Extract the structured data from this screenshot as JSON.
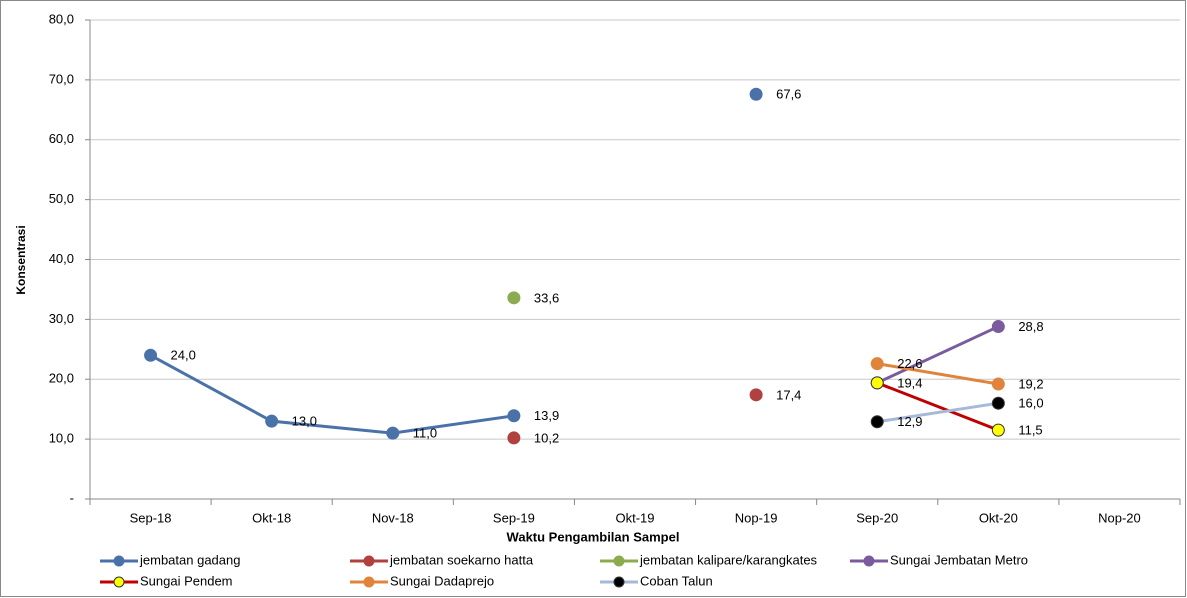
{
  "chart_data": {
    "type": "line",
    "y_label": "Konsentrasi",
    "x_label": "Waktu Pengambilan Sampel",
    "categories": [
      "Sep-18",
      "Okt-18",
      "Nov-18",
      "Sep-19",
      "Okt-19",
      "Nop-19",
      "Sep-20",
      "Okt-20",
      "Nop-20"
    ],
    "ylim": [
      0,
      80
    ],
    "yticks": [
      {
        "value": 0,
        "label": "-"
      },
      {
        "value": 10,
        "label": "10,0"
      },
      {
        "value": 20,
        "label": "20,0"
      },
      {
        "value": 30,
        "label": "30,0"
      },
      {
        "value": 40,
        "label": "40,0"
      },
      {
        "value": 50,
        "label": "50,0"
      },
      {
        "value": 60,
        "label": "60,0"
      },
      {
        "value": 70,
        "label": "70,0"
      },
      {
        "value": 80,
        "label": "80,0"
      }
    ],
    "grid": true,
    "legend": "bottom",
    "series": [
      {
        "name": "jembatan gadang",
        "color": "#4a72a8",
        "values": [
          24.0,
          13.0,
          11.0,
          13.9,
          null,
          67.6,
          null,
          null,
          null
        ],
        "value_labels": [
          "24,0",
          "13,0",
          "11,0",
          "13,9",
          null,
          "67,6",
          null,
          null,
          null
        ]
      },
      {
        "name": "jembatan soekarno hatta",
        "color": "#b0413e",
        "values": [
          null,
          null,
          null,
          10.2,
          null,
          17.4,
          null,
          null,
          null
        ],
        "value_labels": [
          null,
          null,
          null,
          "10,2",
          null,
          "17,4",
          null,
          null,
          null
        ]
      },
      {
        "name": "jembatan kalipare/karangkates",
        "color": "#8cab4f",
        "values": [
          null,
          null,
          null,
          33.6,
          null,
          null,
          null,
          null,
          null
        ],
        "value_labels": [
          null,
          null,
          null,
          "33,6",
          null,
          null,
          null,
          null,
          null
        ]
      },
      {
        "name": "Sungai Jembatan Metro",
        "color": "#7b5a9d",
        "values": [
          null,
          null,
          null,
          null,
          null,
          null,
          19.4,
          28.8,
          null
        ],
        "value_labels": [
          null,
          null,
          null,
          null,
          null,
          null,
          null,
          "28,8",
          null
        ]
      },
      {
        "name": "Sungai Pendem",
        "color": "#c00000",
        "marker_color": "#ffff00",
        "values": [
          null,
          null,
          null,
          null,
          null,
          null,
          19.4,
          11.5,
          null
        ],
        "value_labels": [
          null,
          null,
          null,
          null,
          null,
          null,
          "19,4",
          "11,5",
          null
        ]
      },
      {
        "name": "Sungai Dadaprejo",
        "color": "#e0843c",
        "values": [
          null,
          null,
          null,
          null,
          null,
          null,
          22.6,
          19.2,
          null
        ],
        "value_labels": [
          null,
          null,
          null,
          null,
          null,
          null,
          "22,6",
          "19,2",
          null
        ]
      },
      {
        "name": "Coban Talun",
        "color": "#a6b9d9",
        "marker_color": "#000000",
        "values": [
          null,
          null,
          null,
          null,
          null,
          null,
          12.9,
          16.0,
          null
        ],
        "value_labels": [
          null,
          null,
          null,
          null,
          null,
          null,
          "12,9",
          "16,0",
          null
        ]
      }
    ]
  }
}
